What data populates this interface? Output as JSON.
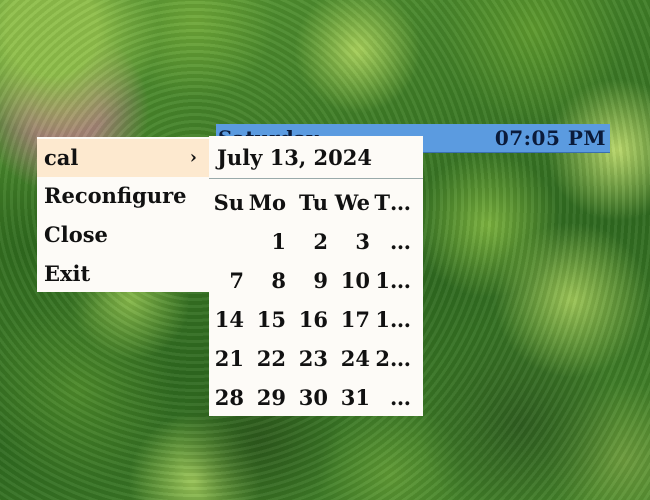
{
  "topbar": {
    "day": "Saturday",
    "time": "07:05 PM"
  },
  "menu": {
    "items": [
      {
        "label": "cal",
        "submenu_indicator": "›",
        "active": true
      },
      {
        "label": "Reconfigure"
      },
      {
        "label": "Close"
      },
      {
        "label": "Exit"
      }
    ]
  },
  "calendar": {
    "date_heading": "July 13, 2024",
    "weekdays": [
      "Su",
      "Mo",
      "Tu",
      "We",
      "T…"
    ],
    "weeks": [
      [
        "",
        "1",
        "2",
        "3",
        "…"
      ],
      [
        "7",
        "8",
        "9",
        "10",
        "1…"
      ],
      [
        "14",
        "15",
        "16",
        "17",
        "1…"
      ],
      [
        "21",
        "22",
        "23",
        "24",
        "2…"
      ],
      [
        "28",
        "29",
        "30",
        "31",
        "…"
      ]
    ]
  }
}
